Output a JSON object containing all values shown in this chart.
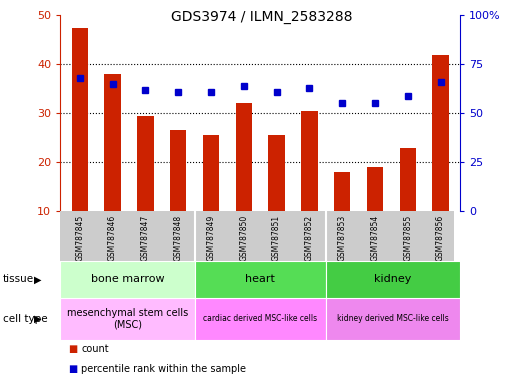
{
  "title": "GDS3974 / ILMN_2583288",
  "samples": [
    "GSM787845",
    "GSM787846",
    "GSM787847",
    "GSM787848",
    "GSM787849",
    "GSM787850",
    "GSM787851",
    "GSM787852",
    "GSM787853",
    "GSM787854",
    "GSM787855",
    "GSM787856"
  ],
  "bar_values": [
    47.5,
    38.0,
    29.5,
    26.5,
    25.5,
    32.0,
    25.5,
    30.5,
    18.0,
    19.0,
    23.0,
    42.0
  ],
  "dot_values_pct": [
    68,
    65,
    62,
    61,
    61,
    64,
    61,
    63,
    55,
    55,
    59,
    66
  ],
  "bar_color": "#cc2200",
  "dot_color": "#0000cc",
  "left_ylim": [
    10,
    50
  ],
  "left_yticks": [
    10,
    20,
    30,
    40,
    50
  ],
  "right_ylim": [
    0,
    100
  ],
  "right_yticks": [
    0,
    25,
    50,
    75,
    100
  ],
  "right_yticklabels": [
    "0",
    "25",
    "50",
    "75",
    "100%"
  ],
  "grid_lines": [
    20,
    30,
    40
  ],
  "tissue_groups": [
    {
      "label": "bone marrow",
      "start": 0,
      "end": 4,
      "color": "#ccffcc"
    },
    {
      "label": "heart",
      "start": 4,
      "end": 8,
      "color": "#55dd55"
    },
    {
      "label": "kidney",
      "start": 8,
      "end": 12,
      "color": "#44cc44"
    }
  ],
  "celltype_groups": [
    {
      "label": "mesenchymal stem cells\n(MSC)",
      "start": 0,
      "end": 4,
      "color": "#ffbbff"
    },
    {
      "label": "cardiac derived MSC-like cells",
      "start": 4,
      "end": 8,
      "color": "#ff88ff"
    },
    {
      "label": "kidney derived MSC-like cells",
      "start": 8,
      "end": 12,
      "color": "#ee88ee"
    }
  ],
  "legend_count_label": "count",
  "legend_pct_label": "percentile rank within the sample",
  "tissue_label": "tissue",
  "celltype_label": "cell type",
  "bar_width": 0.5,
  "xlabels_bg": "#cccccc"
}
